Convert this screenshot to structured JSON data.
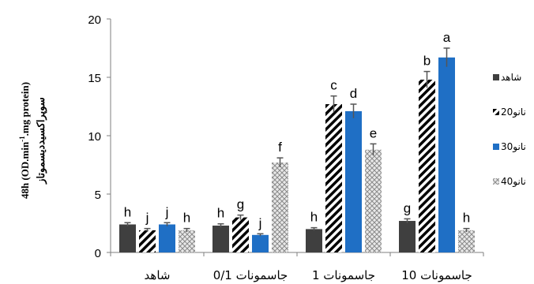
{
  "chart_data": {
    "type": "bar",
    "title": "",
    "ylabel_line1": "48h (OD.min",
    "ylabel_sup": "-1",
    "ylabel_line1_end": ".mg protein)",
    "ylabel_line2": "سوپراکسیددیسموتاز",
    "xlabel": "",
    "ylim": [
      0,
      20
    ],
    "yticks": [
      "0",
      "5",
      "10",
      "15",
      "20"
    ],
    "categories": [
      "شاهد",
      "جاسمونات 0/1",
      "جاسمونات 1",
      "جاسمونات 10"
    ],
    "colors": {
      "series_0": "#3f3f3f",
      "series_2": "#1f6fc5",
      "axis": "#7f7f7f",
      "error": "#555555"
    },
    "legend_position": "right",
    "grid": false,
    "series": [
      {
        "name": "شاهد",
        "pattern": "solid-dark",
        "values": [
          2.4,
          2.3,
          2.0,
          2.7
        ],
        "errors": [
          0.15,
          0.15,
          0.12,
          0.18
        ],
        "labels": [
          "h",
          "h",
          "h",
          "g"
        ]
      },
      {
        "name": "نانو20",
        "pattern": "diagonal-stripes",
        "values": [
          1.9,
          3.0,
          12.7,
          14.8
        ],
        "errors": [
          0.15,
          0.2,
          0.7,
          0.7
        ],
        "labels": [
          "j",
          "g",
          "c",
          "b"
        ]
      },
      {
        "name": "نانو30",
        "pattern": "solid-blue",
        "values": [
          2.4,
          1.5,
          12.1,
          16.7
        ],
        "errors": [
          0.15,
          0.1,
          0.6,
          0.8
        ],
        "labels": [
          "j",
          "j",
          "d",
          "a"
        ]
      },
      {
        "name": "نانو40",
        "pattern": "crosshatch-light",
        "values": [
          1.9,
          7.7,
          8.8,
          1.9
        ],
        "errors": [
          0.15,
          0.4,
          0.5,
          0.15
        ],
        "labels": [
          "h",
          "f",
          "e",
          "h"
        ]
      }
    ]
  }
}
